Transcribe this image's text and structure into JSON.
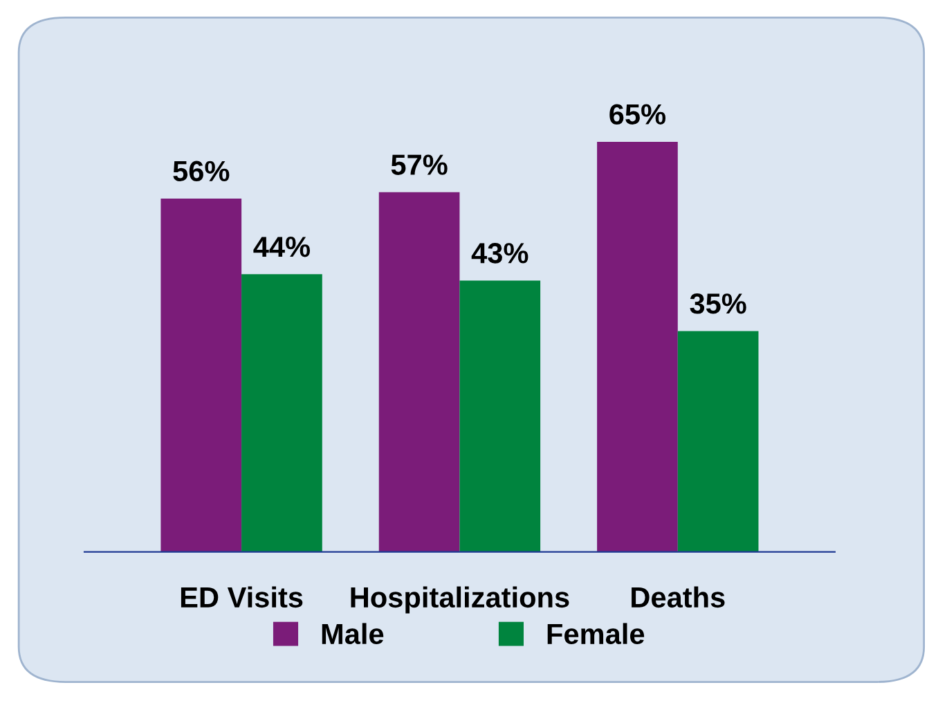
{
  "chart_data": {
    "type": "bar",
    "categories": [
      "ED Visits",
      "Hospitalizations",
      "Deaths"
    ],
    "series": [
      {
        "name": "Male",
        "color": "#7b1c79",
        "values": [
          56,
          57,
          65
        ],
        "value_labels": [
          "56%",
          "57%",
          "65%"
        ]
      },
      {
        "name": "Female",
        "color": "#00843e",
        "values": [
          44,
          43,
          35
        ],
        "value_labels": [
          "44%",
          "43%",
          "35%"
        ]
      }
    ],
    "legend": "bottom"
  }
}
